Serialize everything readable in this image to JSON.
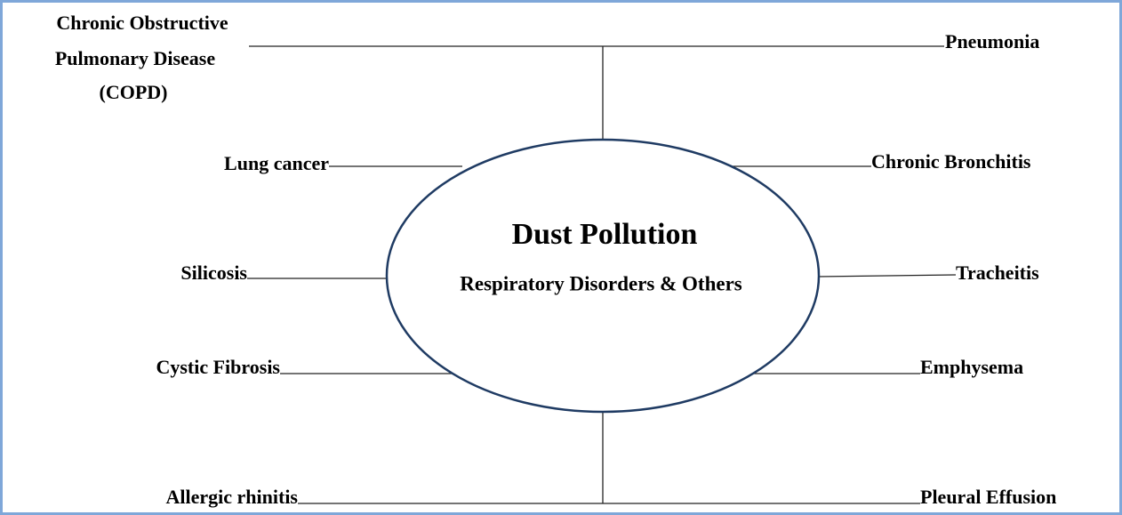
{
  "center": {
    "title": "Dust Pollution",
    "subtitle": "Respiratory Disorders & Others"
  },
  "nodes": [
    {
      "label": [
        "Chronic Obstructive",
        "Pulmonary Disease",
        "(COPD)"
      ]
    },
    {
      "label": "Pneumonia"
    },
    {
      "label": "Lung cancer"
    },
    {
      "label": "Chronic Bronchitis"
    },
    {
      "label": "Silicosis"
    },
    {
      "label": "Tracheitis"
    },
    {
      "label": "Cystic Fibrosis"
    },
    {
      "label": "Emphysema"
    },
    {
      "label": "Allergic rhinitis"
    },
    {
      "label": "Pleural Effusion"
    }
  ]
}
